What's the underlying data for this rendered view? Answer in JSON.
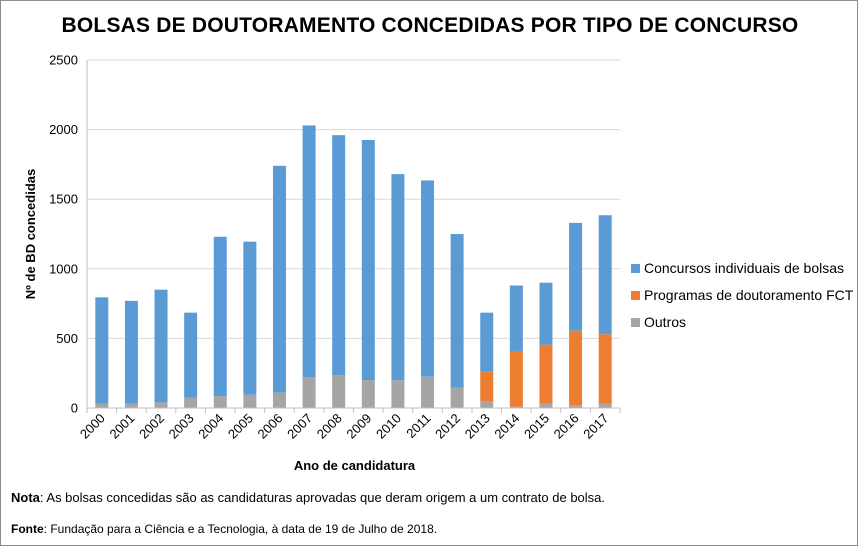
{
  "chart_data": {
    "type": "bar",
    "stacked": true,
    "title": "BOLSAS DE DOUTORAMENTO CONCEDIDAS POR TIPO DE CONCURSO",
    "xlabel": "Ano de candidatura",
    "ylabel": "Nº de BD concedidas",
    "ylim": [
      0,
      2500
    ],
    "yticks": [
      0,
      500,
      1000,
      1500,
      2000,
      2500
    ],
    "grid": true,
    "legend_position": "right",
    "categories": [
      "2000",
      "2001",
      "2002",
      "2003",
      "2004",
      "2005",
      "2006",
      "2007",
      "2008",
      "2009",
      "2010",
      "2011",
      "2012",
      "2013",
      "2014",
      "2015",
      "2016",
      "2017"
    ],
    "series": [
      {
        "name": "Outros",
        "color": "#a5a5a5",
        "values": [
          30,
          30,
          40,
          75,
          85,
          95,
          110,
          220,
          235,
          200,
          200,
          225,
          145,
          50,
          10,
          30,
          20,
          30
        ]
      },
      {
        "name": "Programas de doutoramento FCT",
        "color": "#ed7d31",
        "values": [
          0,
          0,
          0,
          0,
          0,
          0,
          0,
          0,
          0,
          0,
          0,
          0,
          0,
          215,
          400,
          425,
          535,
          500
        ]
      },
      {
        "name": "Concursos individuais de bolsas",
        "color": "#5b9bd5",
        "values": [
          765,
          740,
          810,
          610,
          1145,
          1100,
          1630,
          1810,
          1725,
          1725,
          1480,
          1410,
          1105,
          420,
          470,
          445,
          775,
          855
        ]
      }
    ],
    "legend_order": [
      "Concursos individuais de bolsas",
      "Programas de doutoramento FCT",
      "Outros"
    ]
  },
  "notes": {
    "nota_label": "Nota",
    "nota_text": ": As bolsas concedidas são as candidaturas aprovadas que deram origem a um contrato de bolsa.",
    "fonte_label": "Fonte",
    "fonte_text": ": Fundação para a Ciência e a Tecnologia, à data de 19 de Julho de 2018."
  }
}
